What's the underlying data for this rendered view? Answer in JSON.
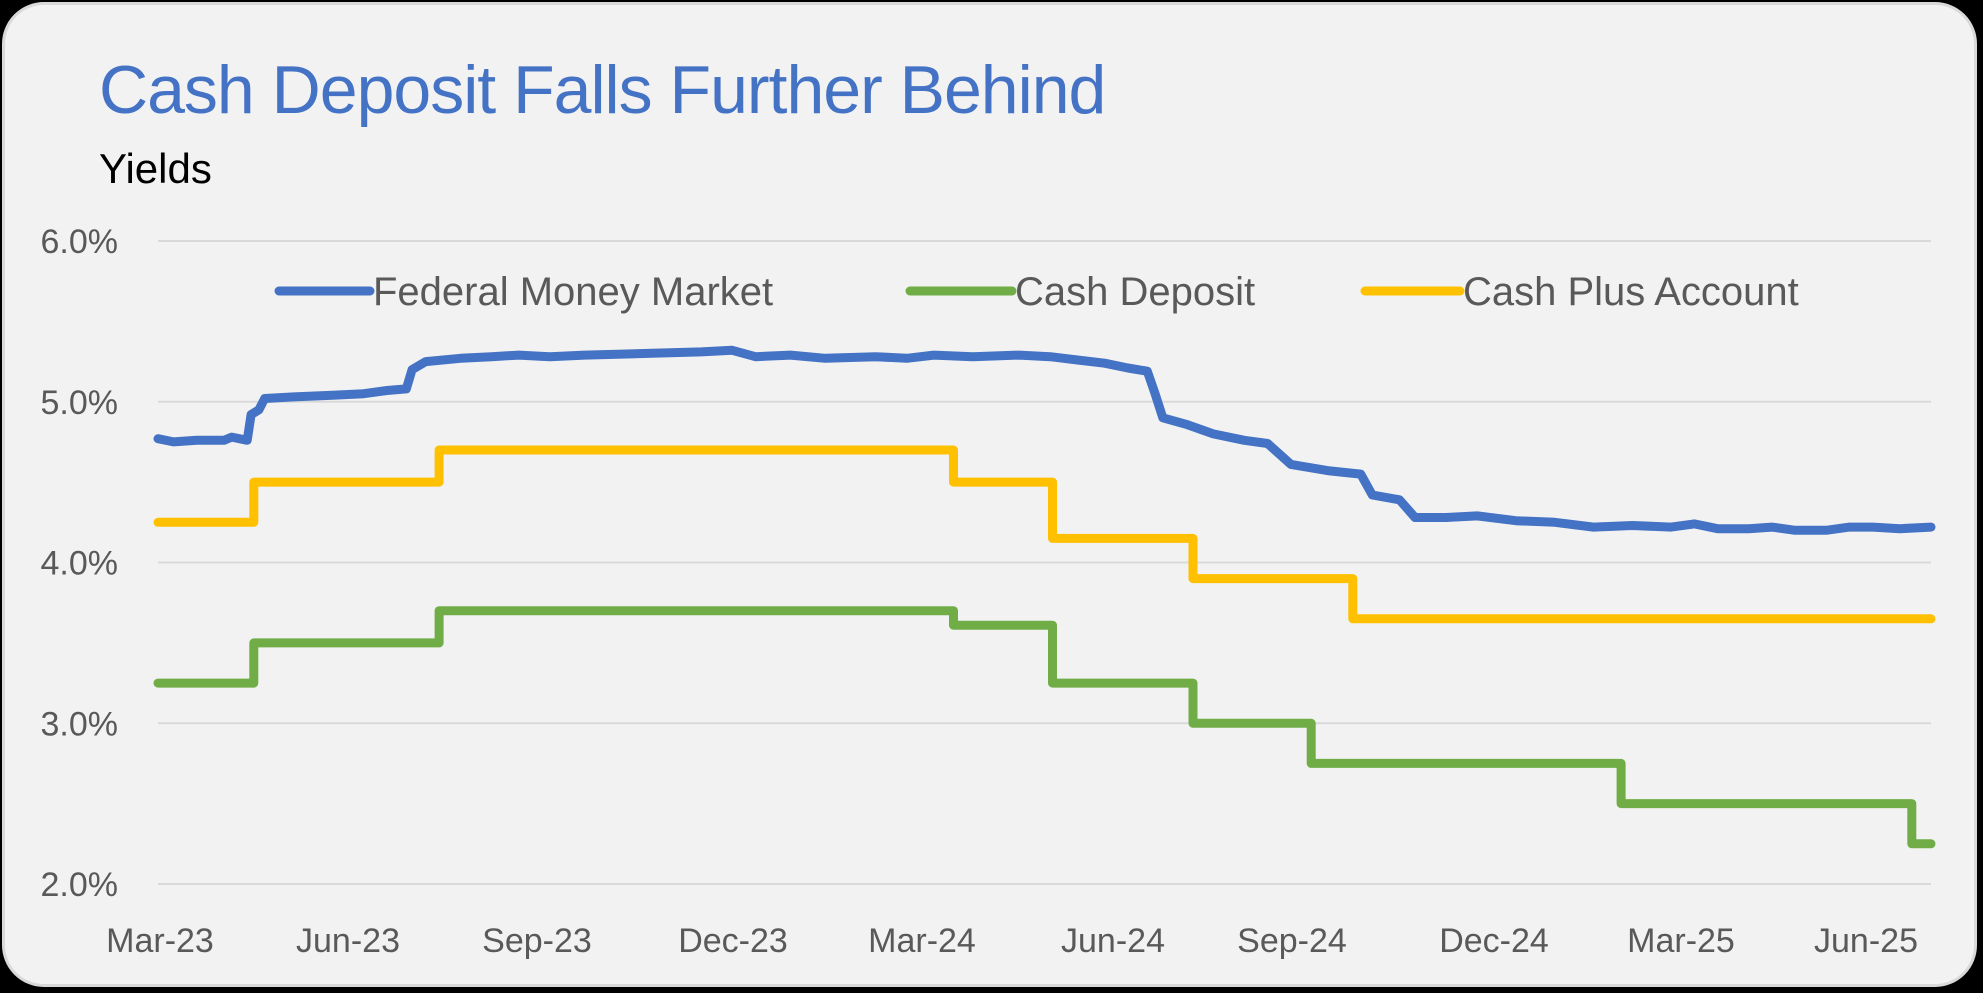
{
  "header": {
    "title": "Cash Deposit Falls Further Behind",
    "subtitle": "Yields"
  },
  "colors": {
    "title": "#4472c4",
    "federal_money_market": "#4472c4",
    "cash_deposit": "#70ad47",
    "cash_plus_account": "#ffc000",
    "gridline": "#d9d9d9",
    "axis_text": "#595959",
    "background": "#f2f2f2"
  },
  "chart_data": {
    "type": "line",
    "title": "Cash Deposit Falls Further Behind",
    "subtitle": "Yields",
    "xlabel": "",
    "ylabel": "",
    "ylim": [
      2.0,
      6.0
    ],
    "yticks": [
      "2.0%",
      "3.0%",
      "4.0%",
      "5.0%",
      "6.0%"
    ],
    "ytick_values": [
      2.0,
      3.0,
      4.0,
      5.0,
      6.0
    ],
    "xticks": [
      "Mar-23",
      "Jun-23",
      "Sep-23",
      "Dec-23",
      "Mar-24",
      "Jun-24",
      "Sep-24",
      "Dec-24",
      "Mar-25",
      "Jun-25"
    ],
    "x_unit": "months since Mar-23",
    "xlim": [
      0,
      28.2
    ],
    "grid": "horizontal",
    "legend_position": "top-inside",
    "series": [
      {
        "name": "Federal Money Market",
        "step": false,
        "points": [
          [
            0,
            4.77
          ],
          [
            0.4,
            4.75
          ],
          [
            1.0,
            4.76
          ],
          [
            1.7,
            4.76
          ],
          [
            1.9,
            4.78
          ],
          [
            2.3,
            4.76
          ],
          [
            2.4,
            4.92
          ],
          [
            2.6,
            4.95
          ],
          [
            2.75,
            5.02
          ],
          [
            3.5,
            5.03
          ],
          [
            4.5,
            5.04
          ],
          [
            5.3,
            5.05
          ],
          [
            5.9,
            5.07
          ],
          [
            6.4,
            5.08
          ],
          [
            6.55,
            5.2
          ],
          [
            6.9,
            5.25
          ],
          [
            7.8,
            5.27
          ],
          [
            8.6,
            5.28
          ],
          [
            9.3,
            5.29
          ],
          [
            10.1,
            5.28
          ],
          [
            11.0,
            5.29
          ],
          [
            12.5,
            5.3
          ],
          [
            14.0,
            5.31
          ],
          [
            14.8,
            5.32
          ],
          [
            15.4,
            5.28
          ],
          [
            16.3,
            5.29
          ],
          [
            17.2,
            5.27
          ],
          [
            18.5,
            5.28
          ],
          [
            19.3,
            5.27
          ],
          [
            20.0,
            5.29
          ],
          [
            21.0,
            5.28
          ],
          [
            22.2,
            5.29
          ],
          [
            23.0,
            5.28
          ],
          [
            23.7,
            5.26
          ],
          [
            24.4,
            5.24
          ],
          [
            25.0,
            5.21
          ],
          [
            25.5,
            5.19
          ],
          [
            25.7,
            5.05
          ],
          [
            25.9,
            4.9
          ],
          [
            26.5,
            4.86
          ],
          [
            27.2,
            4.8
          ],
          [
            28.0,
            4.76
          ],
          [
            28.6,
            4.74
          ],
          [
            29.2,
            4.61
          ],
          [
            30.2,
            4.57
          ],
          [
            31.0,
            4.55
          ],
          [
            31.3,
            4.42
          ],
          [
            32.0,
            4.39
          ],
          [
            32.4,
            4.28
          ],
          [
            33.2,
            4.28
          ],
          [
            34.0,
            4.29
          ],
          [
            35.0,
            4.26
          ],
          [
            36.0,
            4.25
          ],
          [
            37.0,
            4.22
          ],
          [
            38.0,
            4.23
          ],
          [
            39.0,
            4.22
          ],
          [
            39.6,
            4.24
          ],
          [
            40.2,
            4.21
          ],
          [
            41.0,
            4.21
          ],
          [
            41.6,
            4.22
          ],
          [
            42.2,
            4.2
          ],
          [
            43.0,
            4.2
          ],
          [
            43.6,
            4.22
          ],
          [
            44.2,
            4.22
          ],
          [
            44.9,
            4.21
          ],
          [
            45.7,
            4.22
          ]
        ]
      },
      {
        "name": "Cash Deposit",
        "step": true,
        "points": [
          [
            0,
            3.25
          ],
          [
            3.0,
            3.25
          ],
          [
            3.0,
            3.5
          ],
          [
            8.8,
            3.5
          ],
          [
            8.8,
            3.7
          ],
          [
            24.9,
            3.7
          ],
          [
            24.9,
            3.61
          ],
          [
            28.0,
            3.61
          ],
          [
            28.0,
            3.25
          ],
          [
            32.4,
            3.25
          ],
          [
            32.4,
            3.0
          ],
          [
            36.1,
            3.0
          ],
          [
            36.1,
            2.75
          ],
          [
            45.8,
            2.75
          ],
          [
            45.8,
            2.5
          ],
          [
            54.9,
            2.5
          ],
          [
            54.9,
            2.25
          ],
          [
            55.5,
            2.25
          ]
        ]
      },
      {
        "name": "Cash Plus Account",
        "step": true,
        "points": [
          [
            0,
            4.25
          ],
          [
            3.0,
            4.25
          ],
          [
            3.0,
            4.5
          ],
          [
            8.8,
            4.5
          ],
          [
            8.8,
            4.7
          ],
          [
            24.9,
            4.7
          ],
          [
            24.9,
            4.5
          ],
          [
            28.0,
            4.5
          ],
          [
            28.0,
            4.15
          ],
          [
            32.4,
            4.15
          ],
          [
            32.4,
            3.9
          ],
          [
            37.4,
            3.9
          ],
          [
            37.4,
            3.65
          ],
          [
            55.5,
            3.65
          ]
        ]
      }
    ]
  },
  "legend": {
    "items": [
      {
        "label": "Federal Money Market"
      },
      {
        "label": "Cash Deposit"
      },
      {
        "label": "Cash Plus Account"
      }
    ]
  }
}
